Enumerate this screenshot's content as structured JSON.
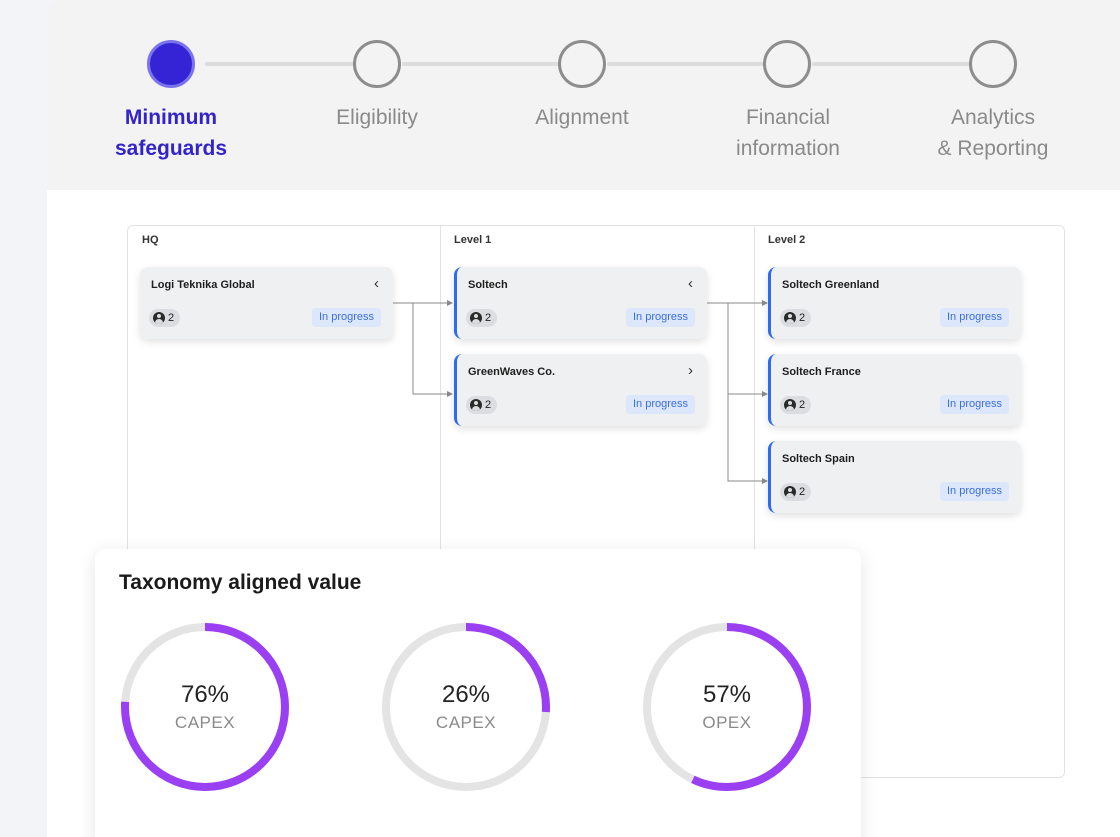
{
  "stepper": {
    "steps": [
      {
        "label_line1": "Minimum",
        "label_line2": "safeguards",
        "active": true
      },
      {
        "label_line1": "Eligibility",
        "label_line2": "",
        "active": false
      },
      {
        "label_line1": "Alignment",
        "label_line2": "",
        "active": false
      },
      {
        "label_line1": "Financial",
        "label_line2": "information",
        "active": false
      },
      {
        "label_line1": "Analytics",
        "label_line2": "& Reporting",
        "active": false
      }
    ]
  },
  "tree": {
    "columns": [
      "HQ",
      "Level 1",
      "Level 2"
    ],
    "nodes": {
      "hq": {
        "title": "Logi Teknika Global",
        "count": "2",
        "status": "In progress",
        "chevron": "‹"
      },
      "soltech": {
        "title": "Soltech",
        "count": "2",
        "status": "In progress",
        "chevron": "‹"
      },
      "greenwaves": {
        "title": "GreenWaves Co.",
        "count": "2",
        "status": "In progress",
        "chevron": "›"
      },
      "greenland": {
        "title": "Soltech Greenland",
        "count": "2",
        "status": "In progress"
      },
      "france": {
        "title": "Soltech France",
        "count": "2",
        "status": "In progress"
      },
      "spain": {
        "title": "Soltech Spain",
        "count": "2",
        "status": "In progress"
      }
    }
  },
  "taxonomy": {
    "title": "Taxonomy aligned value",
    "accent": "#9b3ff2",
    "track": "#e4e4e4",
    "donuts": [
      {
        "value_text": "76%",
        "value": 76,
        "label": "CAPEX"
      },
      {
        "value_text": "26%",
        "value": 26,
        "label": "CAPEX"
      },
      {
        "value_text": "57%",
        "value": 57,
        "label": "OPEX"
      }
    ]
  }
}
